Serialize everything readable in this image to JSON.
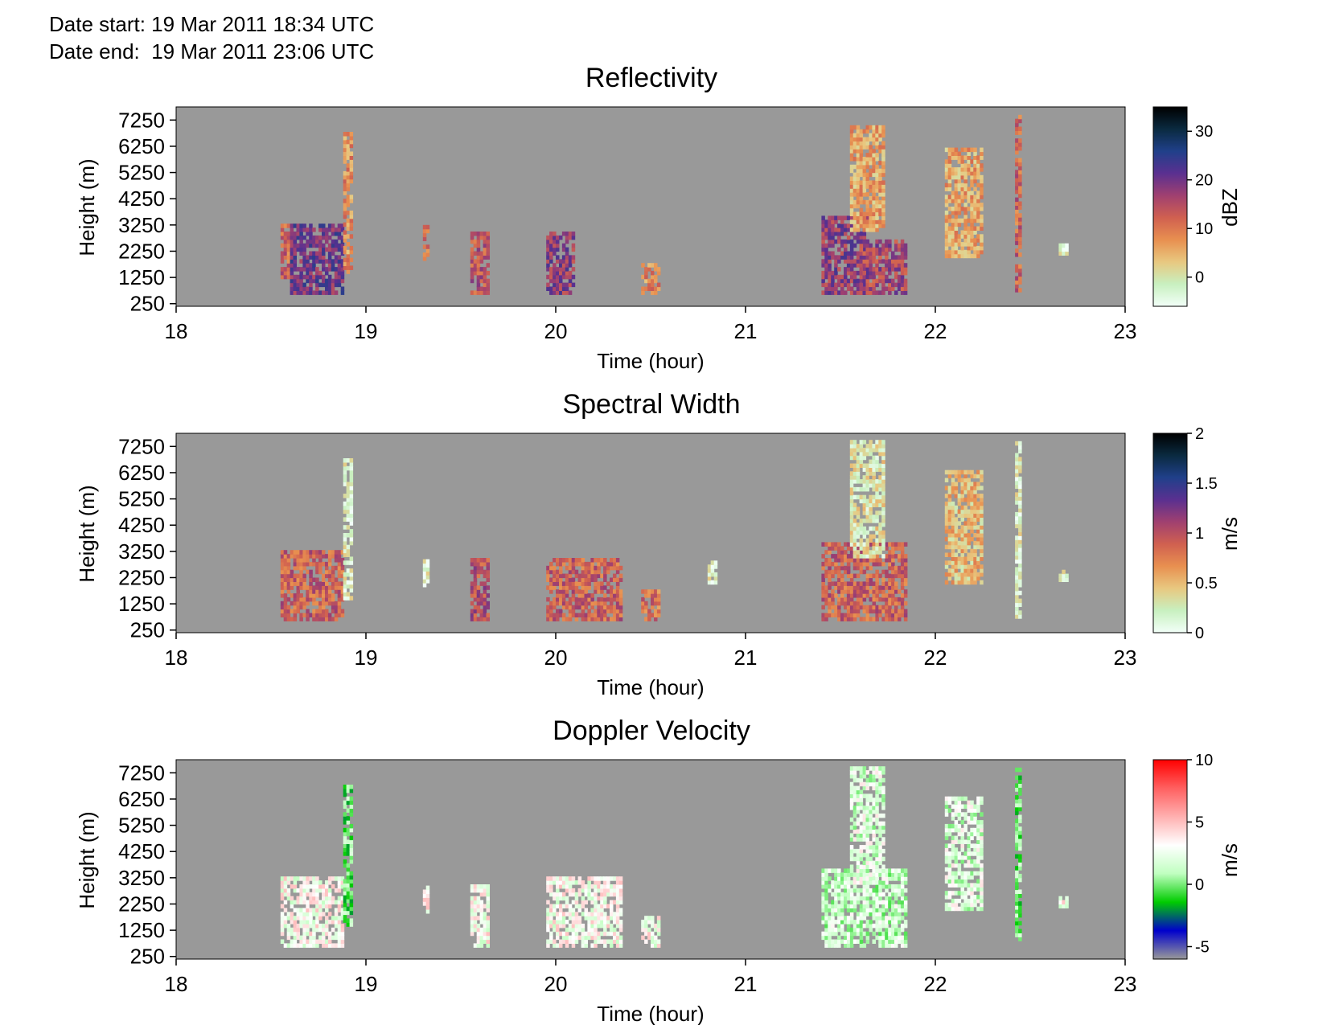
{
  "header": {
    "date_start_label": "Date start:",
    "date_start_value": "19 Mar 2011 18:34 UTC",
    "date_end_label": "Date end:",
    "date_end_value": "19 Mar 2011 23:06 UTC"
  },
  "colors": {
    "background_no_data": "#999999",
    "reflectivity_scale": [
      "#f2fff8",
      "#c8f0c0",
      "#e8c880",
      "#e89050",
      "#d06050",
      "#a04070",
      "#5a3090",
      "#20408a",
      "#0a2a40",
      "#000000"
    ],
    "width_scale": [
      "#f2fff8",
      "#c8f0c0",
      "#e8c880",
      "#e89050",
      "#d06050",
      "#a04070",
      "#5a3090",
      "#20408a",
      "#0a2a40",
      "#000000"
    ],
    "velocity_scale": [
      "#999999",
      "#0000cc",
      "#00cc00",
      "#c0ffc0",
      "#ffffff",
      "#ffb0b0",
      "#ff6060",
      "#ff0000"
    ]
  },
  "chart_data": [
    {
      "type": "heatmap",
      "title": "Reflectivity",
      "xlabel": "Time (hour)",
      "ylabel": "Height (m)",
      "xlim": [
        18,
        23
      ],
      "ylim": [
        150,
        7750
      ],
      "xticks": [
        "18",
        "19",
        "20",
        "21",
        "22",
        "23"
      ],
      "yticks": [
        "7250",
        "6250",
        "5250",
        "4250",
        "3250",
        "2250",
        "1250",
        "250"
      ],
      "colorbar": {
        "label": "dBZ",
        "range": [
          -6,
          35
        ],
        "ticks": [
          "30",
          "20",
          "10",
          "0"
        ],
        "tick_values": [
          30,
          20,
          10,
          0
        ]
      },
      "echoes": [
        {
          "t": [
            18.55,
            18.6
          ],
          "h": [
            1200,
            3300
          ],
          "v": 12
        },
        {
          "t": [
            18.6,
            18.88
          ],
          "h": [
            600,
            3300
          ],
          "v": 20
        },
        {
          "t": [
            18.88,
            18.92
          ],
          "h": [
            1400,
            6800
          ],
          "v": 8
        },
        {
          "t": [
            19.3,
            19.33
          ],
          "h": [
            1900,
            3200
          ],
          "v": 10
        },
        {
          "t": [
            19.55,
            19.65
          ],
          "h": [
            600,
            2900
          ],
          "v": 14
        },
        {
          "t": [
            19.95,
            20.1
          ],
          "h": [
            600,
            3000
          ],
          "v": 18
        },
        {
          "t": [
            20.45,
            20.55
          ],
          "h": [
            600,
            1700
          ],
          "v": 8
        },
        {
          "t": [
            21.4,
            21.65
          ],
          "h": [
            600,
            3500
          ],
          "v": 18
        },
        {
          "t": [
            21.6,
            21.85
          ],
          "h": [
            600,
            2600
          ],
          "v": 16
        },
        {
          "t": [
            21.55,
            21.72
          ],
          "h": [
            3000,
            7000
          ],
          "v": 6
        },
        {
          "t": [
            22.05,
            22.25
          ],
          "h": [
            2000,
            6100
          ],
          "v": 6
        },
        {
          "t": [
            22.42,
            22.45
          ],
          "h": [
            700,
            7400
          ],
          "v": 12
        },
        {
          "t": [
            22.65,
            22.7
          ],
          "h": [
            2100,
            2500
          ],
          "v": -3
        }
      ]
    },
    {
      "type": "heatmap",
      "title": "Spectral Width",
      "xlabel": "Time (hour)",
      "ylabel": "Height (m)",
      "xlim": [
        18,
        23
      ],
      "ylim": [
        150,
        7750
      ],
      "xticks": [
        "18",
        "19",
        "20",
        "21",
        "22",
        "23"
      ],
      "yticks": [
        "7250",
        "6250",
        "5250",
        "4250",
        "3250",
        "2250",
        "1250",
        "250"
      ],
      "colorbar": {
        "label": "m/s",
        "range": [
          0,
          2
        ],
        "ticks": [
          "2",
          "1.5",
          "1",
          "0.5",
          "0"
        ],
        "tick_values": [
          2,
          1.5,
          1,
          0.5,
          0
        ]
      },
      "echoes": [
        {
          "t": [
            18.55,
            18.88
          ],
          "h": [
            600,
            3300
          ],
          "v": 0.9
        },
        {
          "t": [
            18.88,
            18.92
          ],
          "h": [
            1400,
            6800
          ],
          "v": 0.2
        },
        {
          "t": [
            19.3,
            19.33
          ],
          "h": [
            1900,
            2900
          ],
          "v": 0.2
        },
        {
          "t": [
            19.55,
            19.65
          ],
          "h": [
            600,
            2900
          ],
          "v": 1.0
        },
        {
          "t": [
            19.95,
            20.35
          ],
          "h": [
            600,
            3000
          ],
          "v": 0.9
        },
        {
          "t": [
            20.45,
            20.55
          ],
          "h": [
            600,
            1700
          ],
          "v": 0.8
        },
        {
          "t": [
            20.8,
            20.85
          ],
          "h": [
            2000,
            2900
          ],
          "v": 0.2
        },
        {
          "t": [
            21.4,
            21.85
          ],
          "h": [
            600,
            3500
          ],
          "v": 0.9
        },
        {
          "t": [
            21.55,
            21.72
          ],
          "h": [
            3000,
            7400
          ],
          "v": 0.3
        },
        {
          "t": [
            22.05,
            22.25
          ],
          "h": [
            2000,
            6300
          ],
          "v": 0.5
        },
        {
          "t": [
            22.42,
            22.45
          ],
          "h": [
            700,
            7400
          ],
          "v": 0.2
        },
        {
          "t": [
            22.65,
            22.7
          ],
          "h": [
            2100,
            2500
          ],
          "v": 0.2
        }
      ]
    },
    {
      "type": "heatmap",
      "title": "Doppler Velocity",
      "xlabel": "Time (hour)",
      "ylabel": "Height (m)",
      "xlim": [
        18,
        23
      ],
      "ylim": [
        150,
        7750
      ],
      "xticks": [
        "18",
        "19",
        "20",
        "21",
        "22",
        "23"
      ],
      "yticks": [
        "7250",
        "6250",
        "5250",
        "4250",
        "3250",
        "2250",
        "1250",
        "250"
      ],
      "colorbar": {
        "label": "m/s",
        "range": [
          -6,
          10
        ],
        "ticks": [
          "10",
          "5",
          "0",
          "-5"
        ],
        "tick_values": [
          10,
          5,
          0,
          -5
        ]
      },
      "echoes": [
        {
          "t": [
            18.55,
            18.88
          ],
          "h": [
            600,
            3300
          ],
          "v": 3
        },
        {
          "t": [
            18.88,
            18.92
          ],
          "h": [
            1400,
            6800
          ],
          "v": 0
        },
        {
          "t": [
            19.3,
            19.33
          ],
          "h": [
            1900,
            2900
          ],
          "v": 3
        },
        {
          "t": [
            19.55,
            19.65
          ],
          "h": [
            600,
            2900
          ],
          "v": 3
        },
        {
          "t": [
            19.95,
            20.35
          ],
          "h": [
            600,
            3300
          ],
          "v": 3
        },
        {
          "t": [
            20.45,
            20.55
          ],
          "h": [
            600,
            1700
          ],
          "v": 3
        },
        {
          "t": [
            21.4,
            21.85
          ],
          "h": [
            600,
            3500
          ],
          "v": 1.5
        },
        {
          "t": [
            21.55,
            21.72
          ],
          "h": [
            3000,
            7400
          ],
          "v": 2
        },
        {
          "t": [
            22.05,
            22.25
          ],
          "h": [
            2000,
            6300
          ],
          "v": 2
        },
        {
          "t": [
            22.42,
            22.45
          ],
          "h": [
            700,
            7400
          ],
          "v": 0
        },
        {
          "t": [
            22.65,
            22.7
          ],
          "h": [
            2100,
            2500
          ],
          "v": 3
        }
      ]
    }
  ]
}
